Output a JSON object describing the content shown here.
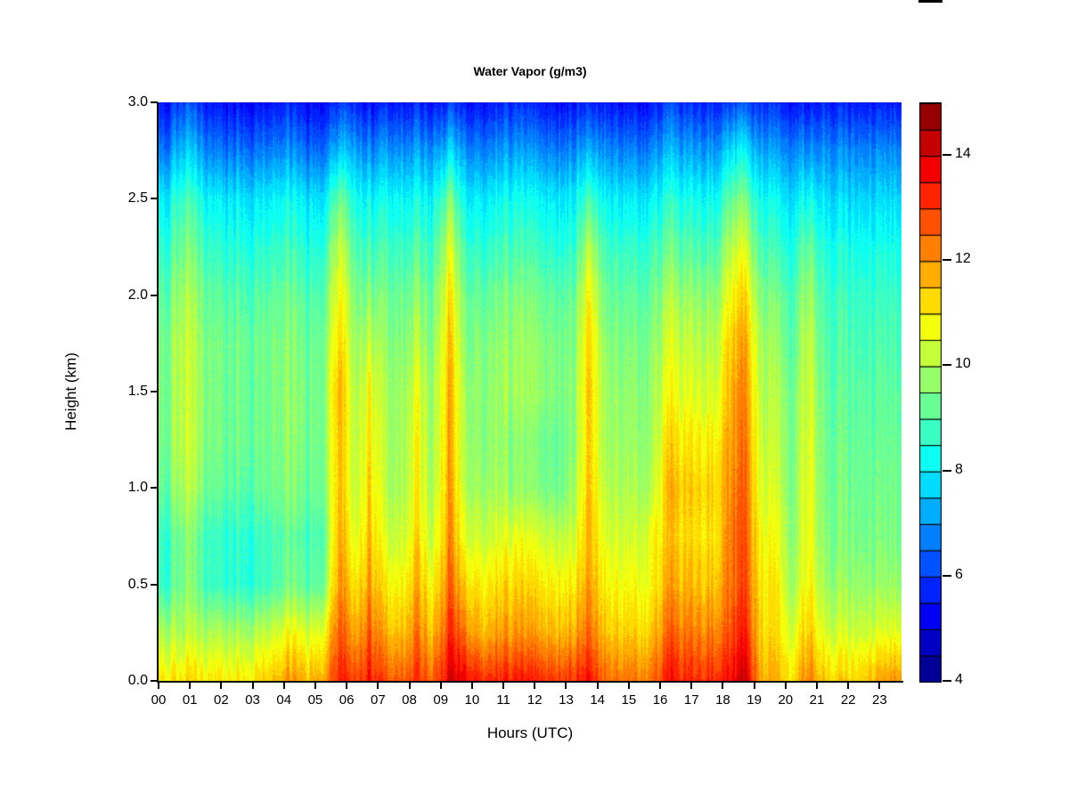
{
  "page": {
    "background": "#ffffff"
  },
  "artifact": {
    "description": "partially-cropped black mark at top edge",
    "color": "#000000"
  },
  "axes": {
    "x_tick_labels": [
      "00",
      "01",
      "02",
      "03",
      "04",
      "05",
      "06",
      "07",
      "08",
      "09",
      "10",
      "11",
      "12",
      "13",
      "14",
      "15",
      "16",
      "17",
      "18",
      "19",
      "20",
      "21",
      "22",
      "23"
    ],
    "y_tick_labels": [
      "0.0",
      "0.5",
      "1.0",
      "1.5",
      "2.0",
      "2.5",
      "3.0"
    ],
    "colorbar_tick_labels": [
      "4",
      "6",
      "8",
      "10",
      "12",
      "14"
    ]
  },
  "chart_data": {
    "type": "heatmap",
    "title": "Water Vapor (g/m3)",
    "xlabel": "Hours (UTC)",
    "ylabel": "Height (km)",
    "units": "g/m3",
    "colormap": "jet",
    "legend_position": "right",
    "value_range": [
      4,
      15
    ],
    "contour_interval": 0.5,
    "x_range_hours": [
      0,
      23.7
    ],
    "y_range_km": [
      0,
      3
    ],
    "x_tick_hours": [
      0,
      1,
      2,
      3,
      4,
      5,
      6,
      7,
      8,
      9,
      10,
      11,
      12,
      13,
      14,
      15,
      16,
      17,
      18,
      19,
      20,
      21,
      22,
      23
    ],
    "y_tick_km": [
      0,
      0.5,
      1.0,
      1.5,
      2.0,
      2.5,
      3.0
    ],
    "colorbar_ticks": [
      4,
      6,
      8,
      10,
      12,
      14
    ],
    "x_hours": [
      0,
      0.5,
      1,
      1.5,
      2,
      2.5,
      3,
      3.5,
      4,
      4.5,
      5,
      5.5,
      6,
      6.5,
      7,
      7.5,
      8,
      8.5,
      9,
      9.5,
      10,
      10.5,
      11,
      11.5,
      12,
      12.5,
      13,
      13.5,
      14,
      14.5,
      15,
      15.5,
      16,
      16.5,
      17,
      17.5,
      18,
      18.5,
      19,
      19.5,
      20,
      20.5,
      21,
      21.5,
      22,
      22.5,
      23,
      23.5
    ],
    "heights_km": [
      0,
      0.25,
      0.5,
      0.75,
      1.0,
      1.25,
      1.5,
      1.75,
      2.0,
      2.25,
      2.5,
      2.75,
      3.0
    ],
    "values": [
      [
        11,
        11,
        11,
        11,
        11,
        11,
        11.3,
        11.4,
        11.8,
        11.8,
        12,
        13.4,
        12.7,
        13.6,
        12.7,
        12.7,
        13,
        12.7,
        14,
        13.8,
        13.4,
        13.2,
        13.2,
        13.2,
        13.2,
        13.2,
        13.2,
        13.6,
        12.5,
        12.5,
        12.5,
        12.5,
        13.2,
        13.2,
        13.2,
        13.4,
        13.8,
        14.2,
        11.6,
        11.6,
        11.3,
        12.4,
        11.2,
        11.2,
        11.2,
        11.6,
        11.8,
        12
      ],
      [
        9.9,
        9.9,
        9.9,
        9.9,
        9.9,
        9.9,
        10.1,
        10.2,
        10.6,
        10.6,
        10.8,
        12.8,
        11.6,
        12.8,
        11.6,
        11.6,
        12.2,
        11.6,
        13.2,
        12.4,
        11.8,
        11.8,
        11.8,
        11.8,
        11.8,
        11.8,
        11.8,
        12.6,
        11.5,
        11.5,
        11.5,
        11.5,
        12.3,
        12.3,
        12.3,
        12.4,
        13,
        13.4,
        11.1,
        11.1,
        10.5,
        11.6,
        10.2,
        10.2,
        10.2,
        10.3,
        10.4,
        10.5
      ],
      [
        8.6,
        9.4,
        9.1,
        8.6,
        8.6,
        8.6,
        8.7,
        8.8,
        9.2,
        9.2,
        9.4,
        12.2,
        10.9,
        12.1,
        10.9,
        10.9,
        11.6,
        10.9,
        12.6,
        11.4,
        11.1,
        11.1,
        11.1,
        11.1,
        11.1,
        11.1,
        11.1,
        12,
        10.9,
        10.9,
        10.9,
        10.9,
        11.6,
        11.6,
        11.6,
        11.7,
        12.6,
        12.9,
        10.9,
        10.9,
        9.9,
        11.1,
        9.6,
        9.6,
        9.6,
        9.6,
        9.6,
        9.6
      ],
      [
        8.6,
        9.4,
        9.1,
        8.6,
        8.6,
        8.6,
        8.7,
        8.8,
        9,
        9,
        9.2,
        11.9,
        10.3,
        11.7,
        10.3,
        10.3,
        11.1,
        10.3,
        12.2,
        10.6,
        10.4,
        10.4,
        10.4,
        10.4,
        10.4,
        10.4,
        10.4,
        11.8,
        10.5,
        10.5,
        10.5,
        10.8,
        11.2,
        11.2,
        11.2,
        11.3,
        12.5,
        12.8,
        10.6,
        10.6,
        9.7,
        10.9,
        9.3,
        9.3,
        9.3,
        9.3,
        9.3,
        9.3
      ],
      [
        9.1,
        9.9,
        9.6,
        9.1,
        9.1,
        9.1,
        9.2,
        9.2,
        9.4,
        9.4,
        9.5,
        11.7,
        10,
        11.4,
        10,
        10,
        10.8,
        10,
        12,
        10.2,
        9.9,
        9.9,
        9.5,
        9.5,
        9.5,
        9.5,
        9.9,
        11.6,
        10.1,
        10.1,
        10.1,
        10.1,
        11.4,
        11.4,
        11.4,
        11.5,
        12.3,
        12.6,
        10.3,
        10.3,
        9.6,
        10.8,
        9.2,
        9.2,
        9.2,
        9.2,
        9.2,
        9.2
      ],
      [
        9.3,
        10.1,
        9.8,
        9.3,
        9.3,
        9.3,
        9.3,
        9.3,
        9.5,
        9.5,
        9.6,
        11.7,
        9.9,
        11.2,
        9.9,
        9.9,
        10.7,
        9.9,
        11.9,
        10,
        9.7,
        9.7,
        9.4,
        9.4,
        9.4,
        9.4,
        9.7,
        11.5,
        9.9,
        9.9,
        9.9,
        9.9,
        11,
        11,
        11,
        11.1,
        12.1,
        12.4,
        10.1,
        10.1,
        9.5,
        10.7,
        9.1,
        9.1,
        9.1,
        9.1,
        9.1,
        9.1
      ],
      [
        9.3,
        10.1,
        9.8,
        9.3,
        9.3,
        9.3,
        9.3,
        9.3,
        9.5,
        9.5,
        9.6,
        11.9,
        9.8,
        11,
        9.8,
        9.8,
        10.5,
        9.8,
        11.8,
        9.9,
        9.7,
        9.7,
        9.7,
        9.7,
        9.7,
        9.7,
        9.7,
        11.6,
        9.8,
        9.8,
        9.8,
        9.8,
        10.5,
        10.5,
        10.5,
        10.6,
        11.9,
        12.2,
        9.9,
        9.9,
        9.4,
        10.6,
        9,
        9,
        9,
        9,
        9,
        9
      ],
      [
        9.3,
        10.1,
        9.7,
        9.3,
        9.3,
        9.3,
        9.3,
        9.3,
        9.4,
        9.4,
        9.5,
        11.4,
        9.6,
        10.4,
        9.6,
        9.6,
        10,
        9.6,
        11.6,
        9.7,
        9.6,
        9.6,
        9.6,
        9.6,
        9.6,
        9.6,
        9.6,
        11.4,
        9.6,
        9.6,
        9.6,
        9.6,
        10.2,
        10.2,
        10.2,
        10.3,
        11.6,
        11.9,
        9.7,
        9.7,
        9.2,
        10.4,
        8.8,
        8.8,
        8.8,
        8.8,
        8.8,
        8.8
      ],
      [
        9,
        9.8,
        9.5,
        9,
        9,
        9,
        9,
        9,
        9.1,
        9.1,
        9.2,
        11,
        9.3,
        9.7,
        9.3,
        9.3,
        9.5,
        9.3,
        11.2,
        9.4,
        9.3,
        9.3,
        9.3,
        9.3,
        9.3,
        9.3,
        9.3,
        11,
        9.3,
        9.3,
        9.3,
        9.3,
        9.7,
        9.7,
        9.7,
        9.8,
        11,
        11.3,
        9.3,
        9.3,
        9,
        10,
        8.6,
        8.6,
        8.6,
        8.6,
        8.6,
        8.6
      ],
      [
        8.5,
        9.3,
        9,
        8.5,
        8.5,
        8.5,
        8.5,
        8.5,
        8.6,
        8.6,
        8.7,
        10.4,
        8.8,
        9,
        8.8,
        8.8,
        8.9,
        8.8,
        10.6,
        8.9,
        8.7,
        8.7,
        8.7,
        8.7,
        8.7,
        8.7,
        8.7,
        10.2,
        8.8,
        8.8,
        8.8,
        8.8,
        9,
        9,
        9,
        9.1,
        10.3,
        10.5,
        8.7,
        8.7,
        8.5,
        9.4,
        8.2,
        8.2,
        8.2,
        8.2,
        8.2,
        8.2
      ],
      [
        7.9,
        8.7,
        8.4,
        7.9,
        7.9,
        7.9,
        7.9,
        7.9,
        8,
        8,
        8,
        9.4,
        8.2,
        8.3,
        8.2,
        8.2,
        8.2,
        8.2,
        9.6,
        8.2,
        8.1,
        8.1,
        8.1,
        8.1,
        8.1,
        8.1,
        8.1,
        9,
        8.1,
        8.1,
        8.1,
        8.1,
        8.3,
        8.3,
        8.3,
        8.4,
        9.4,
        9.5,
        8.1,
        8.1,
        7.9,
        8.4,
        7.6,
        7.6,
        7.6,
        7.6,
        7.6,
        7.6
      ],
      [
        6.6,
        7.4,
        7.1,
        6.6,
        6.6,
        6.6,
        6.6,
        6.6,
        6.7,
        6.7,
        6.7,
        7.6,
        7,
        7,
        7,
        7,
        7,
        7,
        7.8,
        7,
        6.9,
        6.9,
        6.9,
        6.9,
        6.9,
        6.9,
        6.9,
        7.4,
        6.9,
        6.9,
        6.9,
        6.9,
        7.1,
        7.1,
        7.1,
        7.2,
        8,
        8.1,
        7,
        7,
        6.9,
        7,
        6.7,
        6.7,
        6.7,
        6.7,
        6.7,
        6.7
      ],
      [
        5.4,
        6,
        5.8,
        5.4,
        5.4,
        5.4,
        5.4,
        5.4,
        5.5,
        5.5,
        5.5,
        6,
        5.6,
        5.6,
        5.6,
        5.6,
        5.6,
        5.6,
        6,
        5.6,
        5.6,
        5.6,
        5.6,
        5.6,
        5.6,
        5.6,
        5.6,
        5.8,
        5.6,
        5.6,
        5.6,
        5.6,
        5.8,
        5.8,
        5.8,
        5.9,
        6.2,
        6.3,
        5.7,
        5.7,
        5.6,
        5.6,
        5.5,
        5.5,
        5.5,
        5.5,
        5.5,
        5.5
      ]
    ]
  }
}
